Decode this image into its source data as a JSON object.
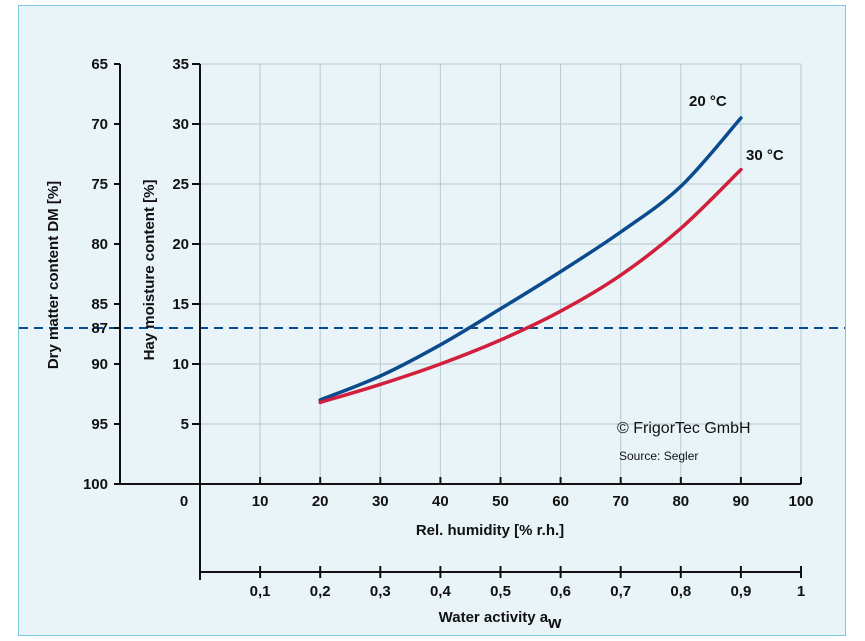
{
  "chart_data": {
    "type": "line",
    "colors": {
      "grid": "#b8c9d1",
      "curve_20": "#0b4a8c",
      "curve_30": "#d11f3c",
      "dashed": "#0b4a8c",
      "panel_bg": "#e8f4f8",
      "panel_border": "#7cc7e2"
    },
    "left_axis": {
      "label": "Dry matter content DM [%]",
      "ticks": [
        "65",
        "70",
        "75",
        "80",
        "85",
        "87",
        "90",
        "95",
        "100"
      ]
    },
    "y_axis": {
      "label": "Hay moisture content [%]",
      "ylim": [
        0,
        35
      ],
      "ticks": [
        "35",
        "30",
        "25",
        "20",
        "15",
        "10",
        "5"
      ]
    },
    "x_axis": {
      "label": "Rel. humidity [% r.h.]",
      "xlim": [
        0,
        100
      ],
      "ticks": [
        "0",
        "10",
        "20",
        "30",
        "40",
        "50",
        "60",
        "70",
        "80",
        "90",
        "100"
      ]
    },
    "aw_axis": {
      "label_main": "Water activity a",
      "label_sub": "w",
      "ticks": [
        "0,1",
        "0,2",
        "0,3",
        "0,4",
        "0,5",
        "0,6",
        "0,7",
        "0,8",
        "0,9",
        "1"
      ]
    },
    "reference_line": {
      "moisture": 13,
      "dry_matter": 87
    },
    "series": [
      {
        "name": "20 °C",
        "x": [
          20,
          30,
          40,
          50,
          60,
          70,
          80,
          90
        ],
        "y": [
          7.0,
          9.0,
          11.6,
          14.6,
          17.7,
          21.0,
          24.8,
          30.5
        ]
      },
      {
        "name": "30 °C",
        "x": [
          20,
          30,
          40,
          50,
          60,
          70,
          80,
          90
        ],
        "y": [
          6.8,
          8.3,
          10.0,
          12.0,
          14.4,
          17.4,
          21.3,
          26.2
        ]
      }
    ],
    "grid": true,
    "copyright": "© FrigorTec GmbH",
    "source": "Source: Segler"
  }
}
